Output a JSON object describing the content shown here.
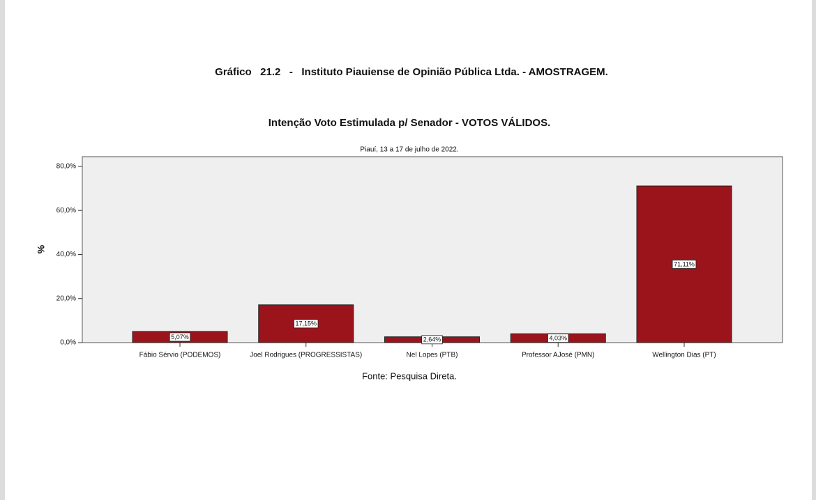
{
  "chart_data": {
    "type": "bar",
    "title": "Gráfico   21.2   -   Instituto Piauiense de Opinião Pública Ltda. - AMOSTRAGEM.",
    "subtitle": "Intenção Voto Estimulada p/ Senador - VOTOS VÁLIDOS.",
    "note": "Piauí, 13 a 17 de julho de 2022.",
    "y_label": "%",
    "source": "Fonte: Pesquisa Direta.",
    "categories": [
      "Fábio Sérvio (PODEMOS)",
      "Joel Rodrigues (PROGRESSISTAS)",
      "Nel Lopes (PTB)",
      "Professor AJosé (PMN)",
      "Wellington Dias (PT)"
    ],
    "values": [
      5.07,
      17.15,
      2.64,
      4.03,
      71.11
    ],
    "value_labels": [
      "5,07%",
      "17,15%",
      "2,64%",
      "4,03%",
      "71,11%"
    ],
    "color": "#9b141b",
    "ylim": [
      0,
      84.4
    ],
    "yticks": [
      {
        "value": 0,
        "label": "0,0%"
      },
      {
        "value": 20,
        "label": "20,0%"
      },
      {
        "value": 40,
        "label": "40,0%"
      },
      {
        "value": 60,
        "label": "60,0%"
      },
      {
        "value": 80,
        "label": "80,0%"
      }
    ]
  }
}
